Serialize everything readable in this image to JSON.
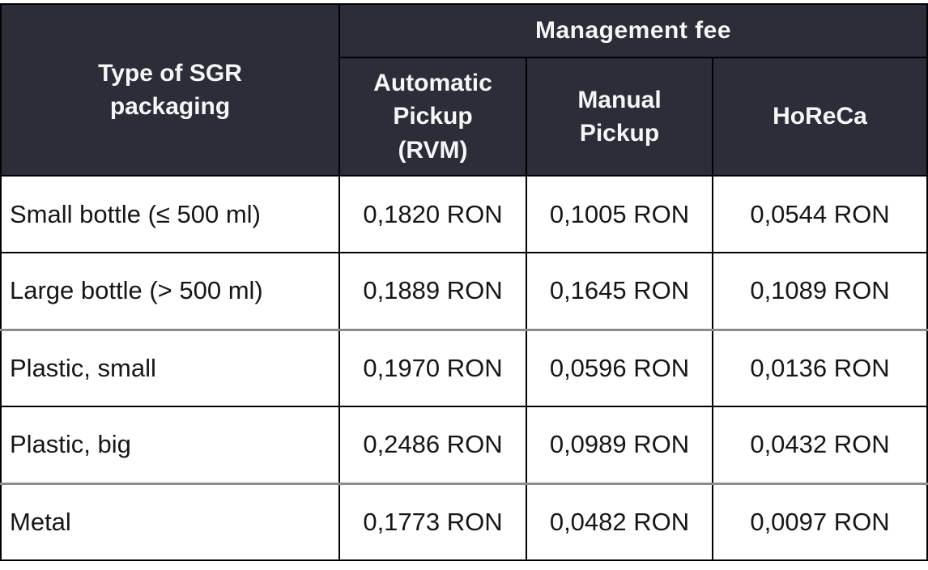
{
  "table": {
    "corner_header": "Type of SGR packaging",
    "group_header": "Management fee",
    "sub_headers": [
      "Automatic Pickup (RVM)",
      "Manual Pickup",
      "HoReCa"
    ],
    "rows": [
      {
        "label": "Small bottle (≤ 500 ml)",
        "values": [
          "0,1820 RON",
          "0,1005 RON",
          "0,0544 RON"
        ]
      },
      {
        "label": "Large bottle (> 500 ml)",
        "values": [
          "0,1889 RON",
          "0,1645 RON",
          "0,1089 RON"
        ]
      },
      {
        "label": "Plastic, small",
        "values": [
          "0,1970 RON",
          "0,0596 RON",
          "0,0136 RON"
        ]
      },
      {
        "label": "Plastic, big",
        "values": [
          "0,2486 RON",
          "0,0989 RON",
          "0,0432 RON"
        ]
      },
      {
        "label": "Metal",
        "values": [
          "0,1773 RON",
          "0,0482 RON",
          "0,0097 RON"
        ]
      }
    ],
    "currency": "RON",
    "colors": {
      "header_background": "#2b2d38",
      "header_text": "#f6f6f6",
      "body_text": "#161616",
      "border_black": "#000000",
      "border_gray": "#8c8c8c"
    }
  },
  "chart_data": {
    "type": "table",
    "title": "Management fee",
    "row_header": "Type of SGR packaging",
    "columns": [
      "Automatic Pickup (RVM)",
      "Manual Pickup",
      "HoReCa"
    ],
    "categories": [
      "Small bottle (≤ 500 ml)",
      "Large bottle (> 500 ml)",
      "Plastic, small",
      "Plastic, big",
      "Metal"
    ],
    "series": [
      {
        "name": "Automatic Pickup (RVM)",
        "values": [
          0.182,
          0.1889,
          0.197,
          0.2486,
          0.1773
        ]
      },
      {
        "name": "Manual Pickup",
        "values": [
          0.1005,
          0.1645,
          0.0596,
          0.0989,
          0.0482
        ]
      },
      {
        "name": "HoReCa",
        "values": [
          0.0544,
          0.1089,
          0.0136,
          0.0432,
          0.0097
        ]
      }
    ],
    "unit": "RON"
  }
}
